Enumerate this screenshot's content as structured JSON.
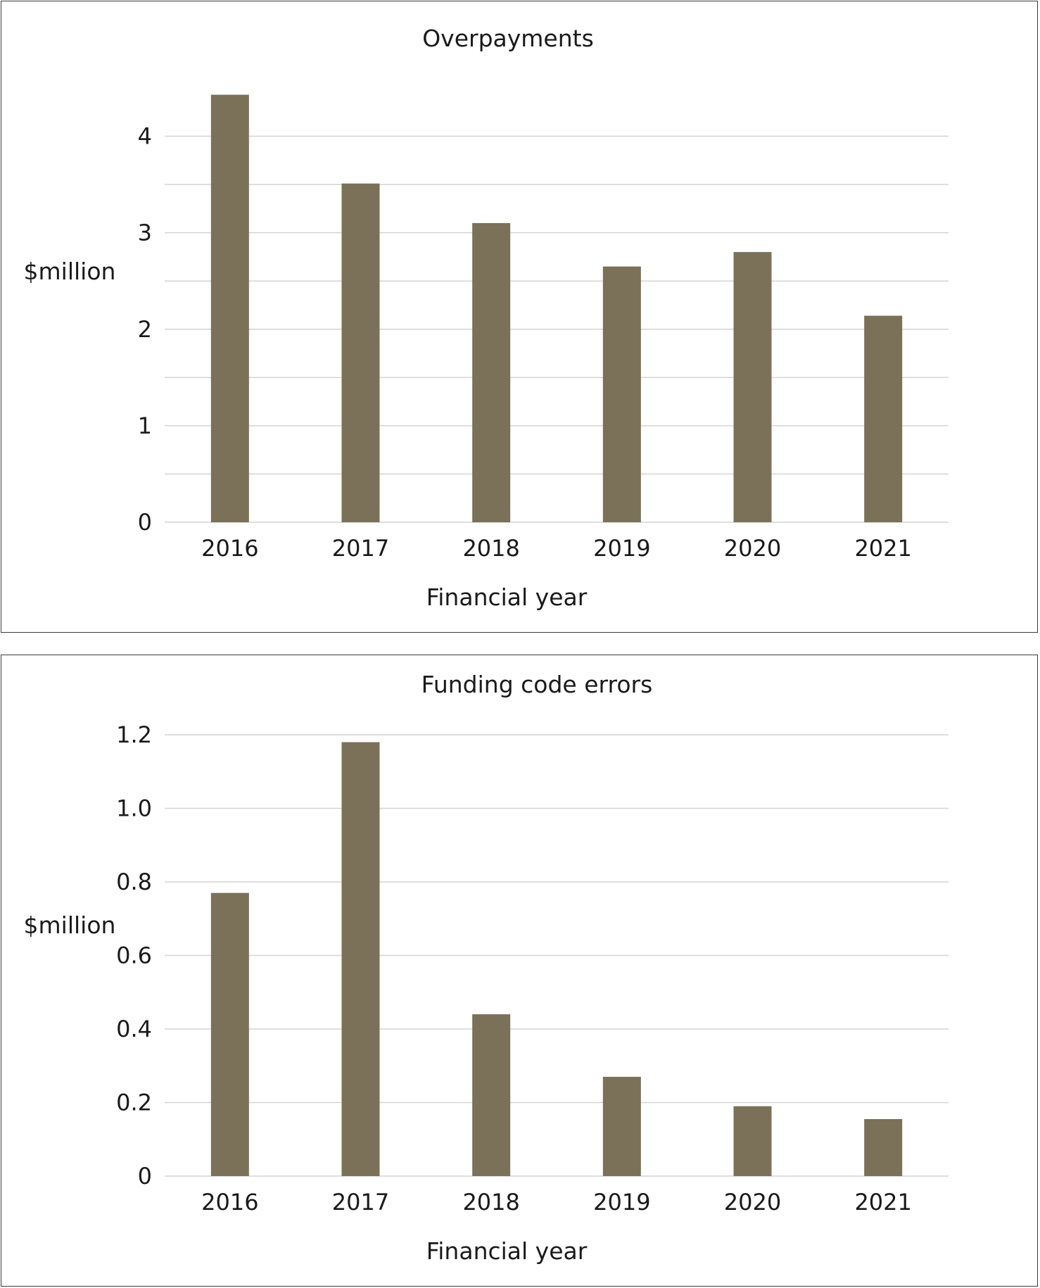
{
  "colors": {
    "bar": "#7a7158",
    "grid": "#d4d4d4",
    "text": "#1a1a1a",
    "border": "#3a3a3a"
  },
  "chart_data": [
    {
      "type": "bar",
      "title": "Overpayments",
      "xlabel": "Financial year",
      "ylabel": "$million",
      "categories": [
        "2016",
        "2017",
        "2018",
        "2019",
        "2020",
        "2021"
      ],
      "values": [
        4.43,
        3.51,
        3.1,
        2.65,
        2.8,
        2.14
      ],
      "ylim": [
        0,
        4.5
      ],
      "yticks": [
        "0",
        "1",
        "2",
        "3",
        "4"
      ],
      "ytick_values": [
        0,
        1,
        2,
        3,
        4
      ],
      "minor_gridlines": [
        0.5,
        1.5,
        2.5,
        3.5
      ],
      "grid": true,
      "legend": "none"
    },
    {
      "type": "bar",
      "title": "Funding code errors",
      "xlabel": "Financial year",
      "ylabel": "$million",
      "categories": [
        "2016",
        "2017",
        "2018",
        "2019",
        "2020",
        "2021"
      ],
      "values": [
        0.77,
        1.18,
        0.44,
        0.27,
        0.19,
        0.155
      ],
      "ylim": [
        0,
        1.2
      ],
      "yticks": [
        "0",
        "0.2",
        "0.4",
        "0.6",
        "0.8",
        "1.0",
        "1.2"
      ],
      "ytick_values": [
        0,
        0.2,
        0.4,
        0.6,
        0.8,
        1.0,
        1.2
      ],
      "minor_gridlines": [],
      "grid": true,
      "legend": "none"
    }
  ]
}
